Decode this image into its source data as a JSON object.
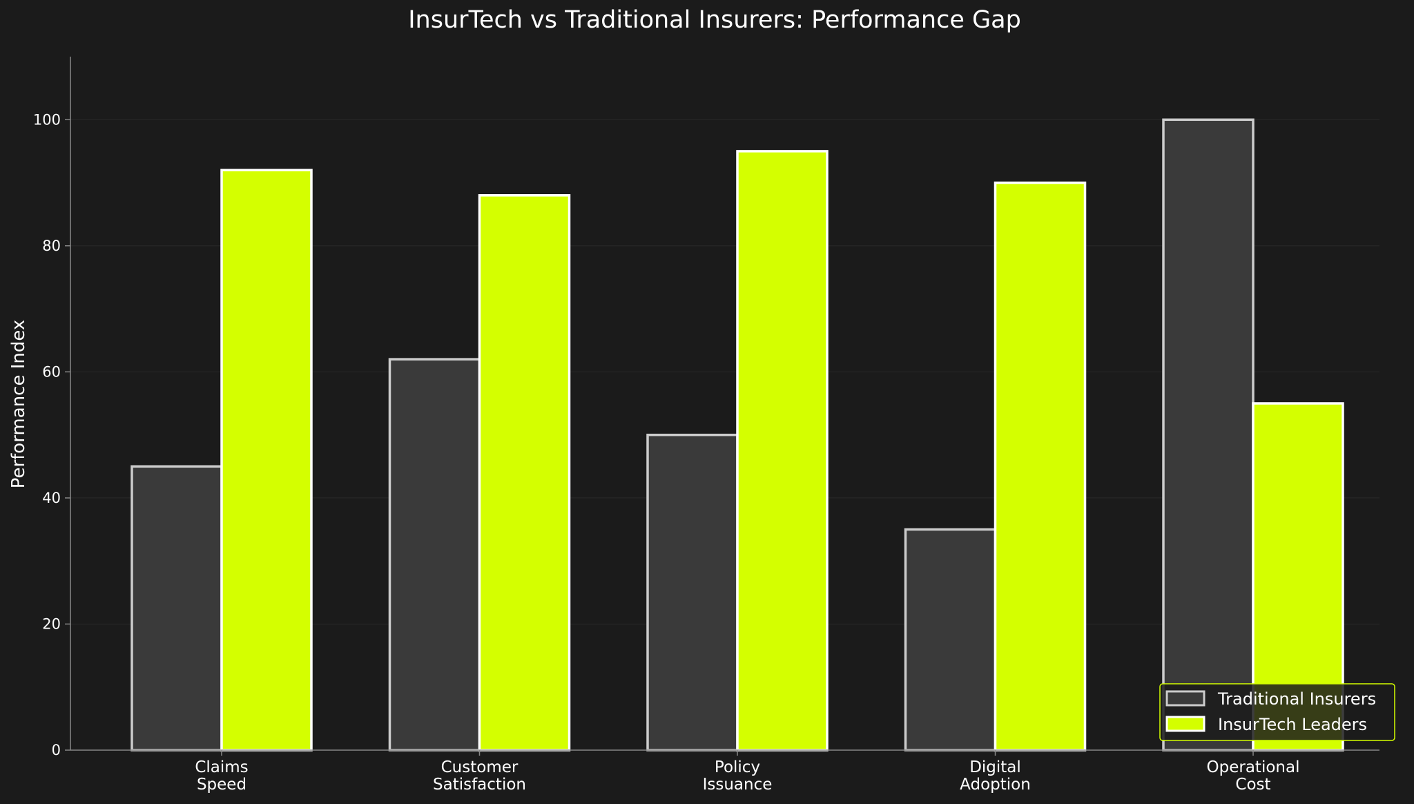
{
  "chart_data": {
    "type": "bar",
    "title": "InsurTech vs Traditional Insurers: Performance Gap",
    "xlabel": "",
    "ylabel": "Performance Index",
    "categories": [
      [
        "Claims",
        "Speed"
      ],
      [
        "Customer",
        "Satisfaction"
      ],
      [
        "Policy",
        "Issuance"
      ],
      [
        "Digital",
        "Adoption"
      ],
      [
        "Operational",
        "Cost"
      ]
    ],
    "series": [
      {
        "name": "Traditional Insurers",
        "values": [
          45,
          62,
          50,
          35,
          100
        ],
        "color": "#3a3a3a",
        "edge_color": "#cccccc"
      },
      {
        "name": "InsurTech Leaders",
        "values": [
          92,
          88,
          95,
          90,
          55
        ],
        "color": "#d4ff00",
        "edge_color": "#ffffff"
      }
    ],
    "ylim": [
      0,
      110
    ],
    "yticks": [
      0,
      20,
      40,
      60,
      80,
      100
    ],
    "grid": true,
    "legend_position": "bottom-right",
    "colors": {
      "background": "#1b1b1b",
      "grid": "#2a2a2a",
      "axis": "#888888",
      "legend_border": "#d4ff00"
    }
  }
}
